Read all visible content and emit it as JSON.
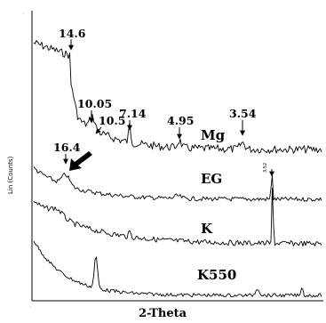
{
  "chart_data": {
    "type": "line",
    "xlabel": "2-Theta",
    "ylabel": "Lin (Counts)",
    "grid": false,
    "series": [
      {
        "name": "Mg"
      },
      {
        "name": "EG"
      },
      {
        "name": "K"
      },
      {
        "name": "K550"
      }
    ],
    "annotations": [
      {
        "text": "14.6",
        "series": "Mg"
      },
      {
        "text": "10.05",
        "series": "Mg"
      },
      {
        "text": "10.5",
        "series": "Mg"
      },
      {
        "text": "7.14",
        "series": "Mg"
      },
      {
        "text": "4.95",
        "series": "Mg"
      },
      {
        "text": "3.54",
        "series": "Mg"
      },
      {
        "text": "16.4",
        "series": "EG"
      },
      {
        "text": "3.52",
        "series": "EG"
      }
    ]
  }
}
